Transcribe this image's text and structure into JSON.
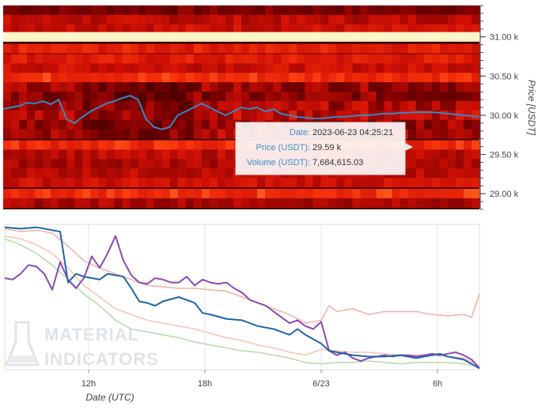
{
  "chart_data": [
    {
      "type": "heatmap",
      "title": "",
      "ylabel": "Price [USDT]",
      "ylim": [
        28.8,
        31.4
      ],
      "yticks": [
        {
          "value": 31.0,
          "label": "31.00 k"
        },
        {
          "value": 30.5,
          "label": "30.50 k"
        },
        {
          "value": 30.0,
          "label": "30.00 k"
        },
        {
          "value": 29.5,
          "label": "29.50 k"
        },
        {
          "value": 29.0,
          "label": "29.00 k"
        }
      ],
      "bands": [
        {
          "price": 31.34,
          "intensity": 0.3
        },
        {
          "price": 31.22,
          "intensity": 0.5
        },
        {
          "price": 31.1,
          "intensity": 0.55
        },
        {
          "price": 31.0,
          "intensity": 1.0
        },
        {
          "price": 30.85,
          "intensity": 0.65
        },
        {
          "price": 30.72,
          "intensity": 0.62
        },
        {
          "price": 30.6,
          "intensity": 0.55
        },
        {
          "price": 30.48,
          "intensity": 0.72
        },
        {
          "price": 30.36,
          "intensity": 0.4
        },
        {
          "price": 30.24,
          "intensity": 0.35
        },
        {
          "price": 30.12,
          "intensity": 0.45
        },
        {
          "price": 30.0,
          "intensity": 0.5
        },
        {
          "price": 29.88,
          "intensity": 0.4
        },
        {
          "price": 29.76,
          "intensity": 0.45
        },
        {
          "price": 29.62,
          "intensity": 0.7
        },
        {
          "price": 29.5,
          "intensity": 0.5
        },
        {
          "price": 29.38,
          "intensity": 0.45
        },
        {
          "price": 29.26,
          "intensity": 0.5
        },
        {
          "price": 29.14,
          "intensity": 0.55
        },
        {
          "price": 29.0,
          "intensity": 0.72
        },
        {
          "price": 28.88,
          "intensity": 0.45
        }
      ],
      "series": [
        {
          "name": "Price (USDT)",
          "color": "#3a86c4",
          "x": [
            0,
            1,
            2,
            3,
            4,
            5,
            6,
            7,
            8,
            9,
            10,
            11,
            12,
            13,
            14,
            15,
            16,
            17,
            18,
            19,
            20,
            21,
            22,
            23,
            24,
            25,
            26,
            27,
            28,
            29,
            30,
            31,
            32,
            33,
            34,
            35,
            36,
            37,
            38,
            39,
            40,
            41,
            42,
            43,
            44,
            45,
            46,
            47,
            48,
            49,
            50,
            51,
            52,
            53,
            54,
            55,
            56,
            57,
            58,
            59,
            60
          ],
          "y": [
            30.08,
            30.1,
            30.12,
            30.16,
            30.15,
            30.18,
            30.14,
            30.2,
            29.95,
            29.9,
            29.98,
            30.05,
            30.1,
            30.15,
            30.18,
            30.22,
            30.25,
            30.2,
            29.95,
            29.85,
            29.82,
            29.85,
            30.0,
            30.05,
            30.1,
            30.15,
            30.1,
            30.05,
            30.0,
            30.05,
            30.1,
            30.08,
            30.1,
            30.05,
            30.08,
            30.02,
            30.0,
            29.98,
            29.97,
            29.96,
            29.96,
            29.97,
            29.98,
            29.98,
            29.99,
            30.0,
            30.0,
            30.01,
            30.02,
            30.02,
            30.03,
            30.03,
            30.04,
            30.04,
            30.04,
            30.03,
            30.02,
            30.01,
            30.0,
            29.99,
            29.98
          ]
        }
      ],
      "tooltip": {
        "date_label": "Date:",
        "date_value": "2023-06-23 04:25:21",
        "price_label": "Price (USDT):",
        "price_value": "29.59 k",
        "volume_label": "Volume (USDT):",
        "volume_value": "7,684,615.03"
      }
    },
    {
      "type": "line",
      "title": "",
      "xlabel": "Date (UTC)",
      "ylim": [
        0,
        1
      ],
      "xlim": [
        0,
        60
      ],
      "xticks": [
        {
          "value": 10.6,
          "label": "12h"
        },
        {
          "value": 25.3,
          "label": "18h"
        },
        {
          "value": 40.0,
          "label": "6/23"
        },
        {
          "value": 54.7,
          "label": "6h"
        }
      ],
      "series": [
        {
          "name": "",
          "color": "#1f66a8",
          "x": [
            0,
            2,
            4,
            6,
            7,
            8,
            9,
            10,
            12,
            13,
            14,
            15,
            16,
            17,
            18,
            19,
            20,
            22,
            24,
            25,
            26,
            28,
            30,
            32,
            34,
            36,
            37,
            38,
            40,
            41,
            42,
            44,
            46,
            48,
            50,
            52,
            54,
            55,
            56,
            58,
            59,
            60
          ],
          "y": [
            0.98,
            0.97,
            0.98,
            0.96,
            0.95,
            0.6,
            0.66,
            0.64,
            0.62,
            0.66,
            0.65,
            0.64,
            0.56,
            0.47,
            0.46,
            0.44,
            0.47,
            0.5,
            0.46,
            0.39,
            0.38,
            0.35,
            0.34,
            0.3,
            0.28,
            0.24,
            0.28,
            0.24,
            0.18,
            0.13,
            0.12,
            0.1,
            0.09,
            0.09,
            0.1,
            0.08,
            0.1,
            0.11,
            0.09,
            0.07,
            0.04,
            0.01
          ]
        },
        {
          "name": "",
          "color": "#8a4bb5",
          "x": [
            0,
            1,
            2,
            3,
            4,
            5,
            6,
            7,
            8,
            9,
            10,
            11,
            12,
            13,
            14,
            15,
            16,
            17,
            18,
            19,
            20,
            21,
            22,
            23,
            24,
            25,
            26,
            27,
            28,
            29,
            30,
            31,
            32,
            33,
            34,
            35,
            36,
            37,
            38,
            39,
            40,
            41,
            42,
            43,
            44,
            45,
            46,
            47,
            48,
            49,
            50,
            51,
            52,
            53,
            54,
            55,
            56,
            57,
            58,
            59,
            60
          ],
          "y": [
            0.63,
            0.62,
            0.66,
            0.72,
            0.71,
            0.66,
            0.55,
            0.74,
            0.62,
            0.56,
            0.63,
            0.78,
            0.7,
            0.8,
            0.92,
            0.75,
            0.65,
            0.6,
            0.59,
            0.63,
            0.62,
            0.6,
            0.6,
            0.64,
            0.58,
            0.62,
            0.6,
            0.59,
            0.6,
            0.56,
            0.53,
            0.48,
            0.46,
            0.44,
            0.4,
            0.36,
            0.32,
            0.34,
            0.3,
            0.28,
            0.33,
            0.13,
            0.1,
            0.12,
            0.08,
            0.06,
            0.08,
            0.09,
            0.1,
            0.09,
            0.1,
            0.1,
            0.09,
            0.1,
            0.11,
            0.1,
            0.11,
            0.12,
            0.1,
            0.07,
            0.01
          ]
        },
        {
          "name": "",
          "color": "#f2b4a6",
          "x": [
            0,
            2,
            4,
            6,
            8,
            10,
            12,
            14,
            16,
            18,
            20,
            22,
            24,
            26,
            28,
            30,
            32,
            34,
            36,
            38,
            40,
            41,
            42,
            44,
            46,
            48,
            50,
            52,
            54,
            56,
            58,
            59,
            60
          ],
          "y": [
            0.97,
            0.95,
            0.96,
            0.94,
            0.85,
            0.75,
            0.7,
            0.66,
            0.62,
            0.58,
            0.57,
            0.56,
            0.56,
            0.55,
            0.54,
            0.5,
            0.46,
            0.42,
            0.38,
            0.32,
            0.34,
            0.44,
            0.4,
            0.42,
            0.38,
            0.4,
            0.4,
            0.4,
            0.38,
            0.37,
            0.38,
            0.36,
            0.52
          ]
        },
        {
          "name": "",
          "color": "#f6c7b8",
          "x": [
            0,
            2,
            4,
            6,
            8,
            10,
            12,
            14,
            16,
            18,
            20,
            22,
            24,
            26,
            28,
            30,
            32,
            34,
            36,
            38,
            40,
            42,
            44,
            46,
            48,
            50,
            52,
            54,
            56,
            58,
            60
          ],
          "y": [
            0.92,
            0.9,
            0.86,
            0.8,
            0.7,
            0.58,
            0.5,
            0.42,
            0.38,
            0.34,
            0.32,
            0.3,
            0.28,
            0.25,
            0.22,
            0.2,
            0.17,
            0.15,
            0.12,
            0.1,
            0.14,
            0.13,
            0.12,
            0.12,
            0.11,
            0.1,
            0.1,
            0.1,
            0.09,
            0.08,
            0.03
          ]
        },
        {
          "name": "",
          "color": "#b9dcae",
          "x": [
            0,
            2,
            4,
            6,
            8,
            10,
            12,
            14,
            16,
            18,
            20,
            22,
            24,
            26,
            28,
            30,
            32,
            34,
            36,
            38,
            40,
            42,
            44,
            46,
            48,
            50,
            52,
            54,
            56,
            58,
            60
          ],
          "y": [
            0.9,
            0.86,
            0.8,
            0.72,
            0.62,
            0.52,
            0.44,
            0.34,
            0.28,
            0.26,
            0.24,
            0.22,
            0.19,
            0.17,
            0.15,
            0.13,
            0.12,
            0.1,
            0.08,
            0.05,
            0.04,
            0.05,
            0.05,
            0.06,
            0.05,
            0.04,
            0.05,
            0.05,
            0.05,
            0.04,
            0.02
          ]
        }
      ],
      "grid": true
    }
  ],
  "watermark": {
    "line1": "MATERIAL",
    "line2": "INDICATORS"
  }
}
